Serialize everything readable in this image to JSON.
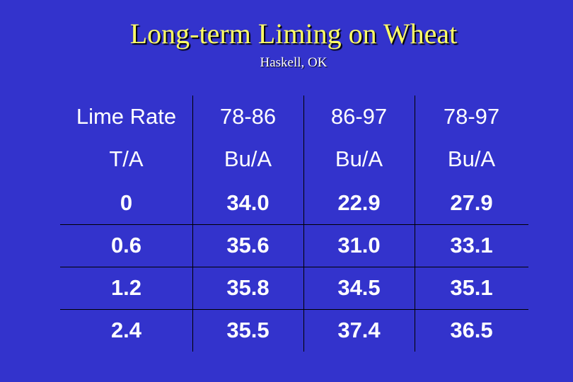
{
  "slide": {
    "title": "Long-term Liming on Wheat",
    "subtitle": "Haskell, OK"
  },
  "table": {
    "header": [
      "Lime Rate",
      "78-86",
      "86-97",
      "78-97"
    ],
    "units": [
      "T/A",
      "Bu/A",
      "Bu/A",
      "Bu/A"
    ],
    "rows": [
      [
        "0",
        "34.0",
        "22.9",
        "27.9"
      ],
      [
        "0.6",
        "35.6",
        "31.0",
        "33.1"
      ],
      [
        "1.2",
        "35.8",
        "34.5",
        "35.1"
      ],
      [
        "2.4",
        "35.5",
        "37.4",
        "36.5"
      ]
    ]
  },
  "colors": {
    "background": "#3333cc",
    "title": "#ffff66",
    "text": "#ffffff",
    "grid": "#000000"
  }
}
